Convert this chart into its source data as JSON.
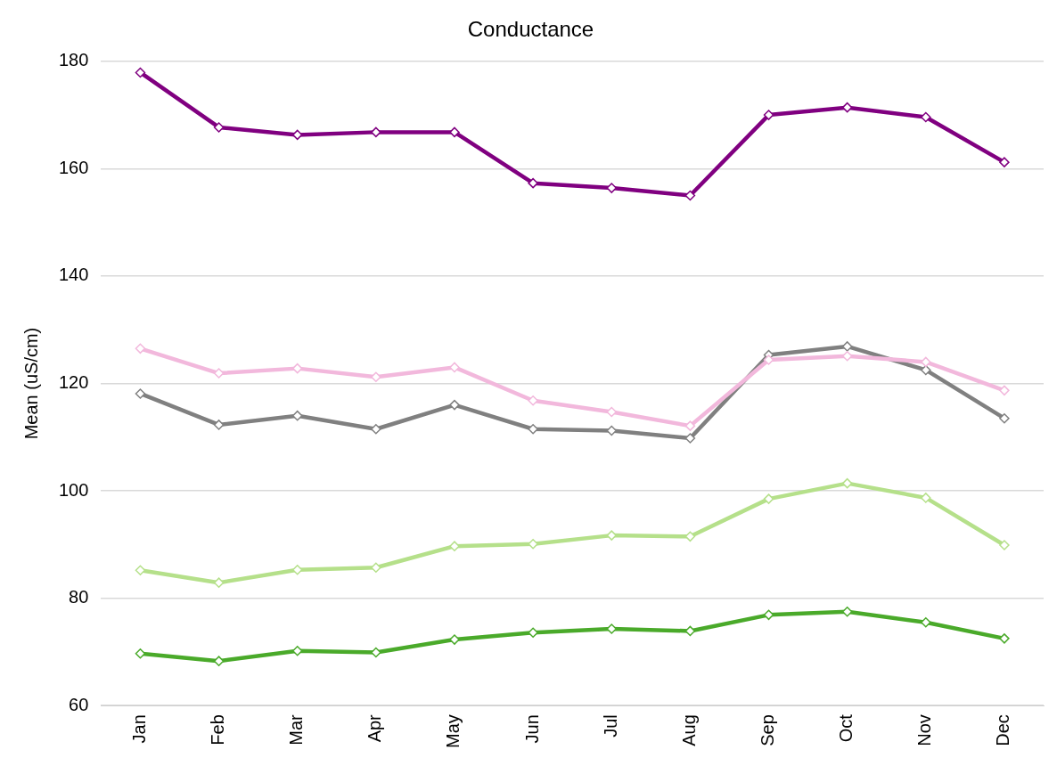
{
  "chart_data": {
    "type": "line",
    "title": "Conductance",
    "ylabel": "Mean (uS/cm)",
    "categories": [
      "Jan",
      "Feb",
      "Mar",
      "Apr",
      "May",
      "Jun",
      "Jul",
      "Aug",
      "Sep",
      "Oct",
      "Nov",
      "Dec"
    ],
    "ylim": [
      60,
      180
    ],
    "yticks": [
      60,
      80,
      100,
      120,
      140,
      160,
      180
    ],
    "grid": "y",
    "legend": false,
    "marker": "diamond",
    "line_style": "solid",
    "series": [
      {
        "color": "#800080",
        "values": [
          177.9,
          167.7,
          166.3,
          166.8,
          166.8,
          157.3,
          156.4,
          155.0,
          170.0,
          171.4,
          169.6,
          161.2
        ]
      },
      {
        "color": "#f2b8dc",
        "values": [
          126.5,
          121.9,
          122.8,
          121.2,
          123.0,
          116.8,
          114.7,
          112.1,
          124.4,
          125.1,
          124.0,
          118.7
        ]
      },
      {
        "color": "#808080",
        "values": [
          118.1,
          112.3,
          114.0,
          111.5,
          116.0,
          111.5,
          111.2,
          109.8,
          125.3,
          126.9,
          122.5,
          113.5
        ]
      },
      {
        "color": "#b5e08a",
        "values": [
          85.2,
          82.9,
          85.3,
          85.7,
          89.7,
          90.1,
          91.7,
          91.5,
          98.5,
          101.4,
          98.7,
          89.9
        ]
      },
      {
        "color": "#4aaa2a",
        "values": [
          69.7,
          68.3,
          70.2,
          69.9,
          72.3,
          73.6,
          74.3,
          73.9,
          76.9,
          77.5,
          75.5,
          72.5
        ]
      }
    ]
  }
}
